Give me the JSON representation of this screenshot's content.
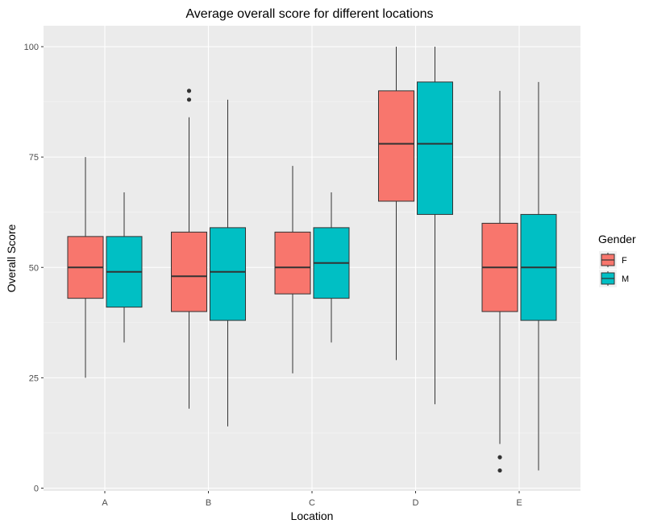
{
  "chart_data": {
    "type": "boxplot",
    "title": "Average overall score for different locations",
    "xlabel": "Location",
    "ylabel": "Overall Score",
    "categories": [
      "A",
      "B",
      "C",
      "D",
      "E"
    ],
    "ylim": [
      0,
      100
    ],
    "yticks": [
      0,
      25,
      50,
      75,
      100
    ],
    "grid": true,
    "legend": {
      "title": "Gender",
      "placement": "right"
    },
    "series": [
      {
        "name": "F",
        "color": "#F8766D",
        "boxes": [
          {
            "category": "A",
            "min": 25,
            "q1": 43,
            "median": 50,
            "q3": 57,
            "max": 75,
            "outliers": []
          },
          {
            "category": "B",
            "min": 18,
            "q1": 40,
            "median": 48,
            "q3": 58,
            "max": 84,
            "outliers": [
              88,
              90
            ]
          },
          {
            "category": "C",
            "min": 26,
            "q1": 44,
            "median": 50,
            "q3": 58,
            "max": 73,
            "outliers": []
          },
          {
            "category": "D",
            "min": 29,
            "q1": 65,
            "median": 78,
            "q3": 90,
            "max": 100,
            "outliers": []
          },
          {
            "category": "E",
            "min": 10,
            "q1": 40,
            "median": 50,
            "q3": 60,
            "max": 90,
            "outliers": [
              4,
              7
            ]
          }
        ]
      },
      {
        "name": "M",
        "color": "#00BFC4",
        "boxes": [
          {
            "category": "A",
            "min": 33,
            "q1": 41,
            "median": 49,
            "q3": 57,
            "max": 67,
            "outliers": []
          },
          {
            "category": "B",
            "min": 14,
            "q1": 38,
            "median": 49,
            "q3": 59,
            "max": 88,
            "outliers": []
          },
          {
            "category": "C",
            "min": 33,
            "q1": 43,
            "median": 51,
            "q3": 59,
            "max": 67,
            "outliers": []
          },
          {
            "category": "D",
            "min": 19,
            "q1": 62,
            "median": 78,
            "q3": 92,
            "max": 100,
            "outliers": []
          },
          {
            "category": "E",
            "min": 4,
            "q1": 38,
            "median": 50,
            "q3": 62,
            "max": 92,
            "outliers": []
          }
        ]
      }
    ]
  }
}
